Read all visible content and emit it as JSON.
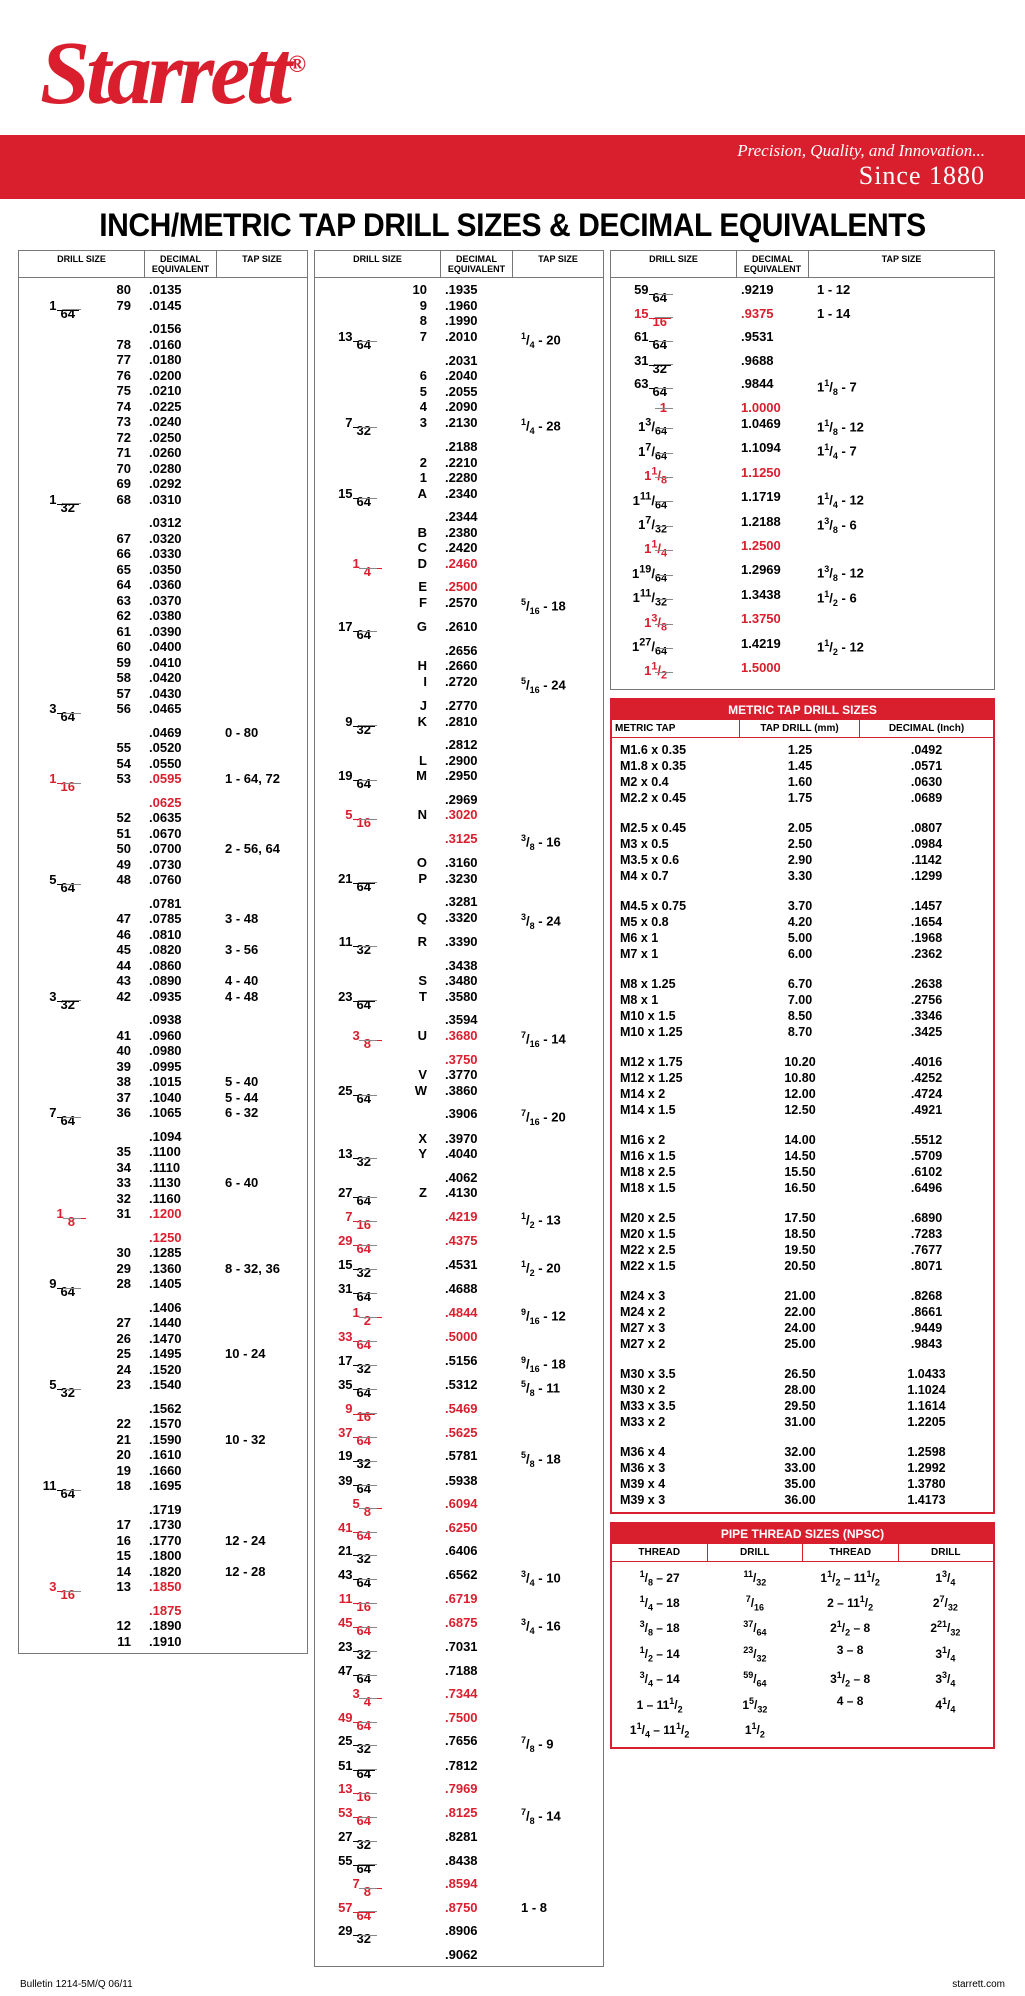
{
  "brand": "Starrett",
  "tagline": "Precision, Quality, and Innovation...",
  "since": "Since 1880",
  "title": "INCH/METRIC TAP DRILL SIZES & DECIMAL EQUIVALENTS",
  "headers": {
    "ds": "DRILL SIZE",
    "de": "DECIMAL EQUIVALENT",
    "ts": "TAP SIZE"
  },
  "footer_left": "Bulletin 1214-5M/Q  06/11",
  "footer_right": "starrett.com",
  "col1": [
    {
      "n": "80",
      "d": ".0135"
    },
    {
      "fN": "1",
      "fD": "64",
      "n": "79",
      "d": ".0145"
    },
    {
      "d": ".0156"
    },
    {
      "n": "78",
      "d": ".0160"
    },
    {
      "n": "77",
      "d": ".0180"
    },
    {
      "n": "76",
      "d": ".0200"
    },
    {
      "n": "75",
      "d": ".0210"
    },
    {
      "n": "74",
      "d": ".0225"
    },
    {
      "n": "73",
      "d": ".0240"
    },
    {
      "n": "72",
      "d": ".0250"
    },
    {
      "n": "71",
      "d": ".0260"
    },
    {
      "n": "70",
      "d": ".0280"
    },
    {
      "n": "69",
      "d": ".0292"
    },
    {
      "fN": "1",
      "fD": "32",
      "n": "68",
      "d": ".0310"
    },
    {
      "d": ".0312"
    },
    {
      "n": "67",
      "d": ".0320"
    },
    {
      "n": "66",
      "d": ".0330"
    },
    {
      "n": "65",
      "d": ".0350"
    },
    {
      "n": "64",
      "d": ".0360"
    },
    {
      "n": "63",
      "d": ".0370"
    },
    {
      "n": "62",
      "d": ".0380"
    },
    {
      "n": "61",
      "d": ".0390"
    },
    {
      "n": "60",
      "d": ".0400"
    },
    {
      "n": "59",
      "d": ".0410"
    },
    {
      "n": "58",
      "d": ".0420"
    },
    {
      "n": "57",
      "d": ".0430"
    },
    {
      "fN": "3",
      "fD": "64",
      "n": "56",
      "d": ".0465"
    },
    {
      "d": ".0469",
      "t": "0 - 80"
    },
    {
      "n": "55",
      "d": ".0520"
    },
    {
      "n": "54",
      "d": ".0550"
    },
    {
      "fN": "1",
      "fD": "16",
      "n": "53",
      "d": ".0595",
      "t": "1 - 64, 72",
      "red": true
    },
    {
      "d": ".0625",
      "red": true
    },
    {
      "n": "52",
      "d": ".0635"
    },
    {
      "n": "51",
      "d": ".0670"
    },
    {
      "n": "50",
      "d": ".0700",
      "t": "2 - 56, 64"
    },
    {
      "n": "49",
      "d": ".0730"
    },
    {
      "fN": "5",
      "fD": "64",
      "n": "48",
      "d": ".0760"
    },
    {
      "d": ".0781"
    },
    {
      "n": "47",
      "d": ".0785",
      "t": "3 - 48"
    },
    {
      "n": "46",
      "d": ".0810"
    },
    {
      "n": "45",
      "d": ".0820",
      "t": "3 - 56"
    },
    {
      "n": "44",
      "d": ".0860"
    },
    {
      "n": "43",
      "d": ".0890",
      "t": "4 - 40"
    },
    {
      "fN": "3",
      "fD": "32",
      "n": "42",
      "d": ".0935",
      "t": "4 - 48"
    },
    {
      "d": ".0938"
    },
    {
      "n": "41",
      "d": ".0960"
    },
    {
      "n": "40",
      "d": ".0980"
    },
    {
      "n": "39",
      "d": ".0995"
    },
    {
      "n": "38",
      "d": ".1015",
      "t": "5 - 40"
    },
    {
      "n": "37",
      "d": ".1040",
      "t": "5 - 44"
    },
    {
      "fN": "7",
      "fD": "64",
      "n": "36",
      "d": ".1065",
      "t": "6 - 32"
    },
    {
      "d": ".1094"
    },
    {
      "n": "35",
      "d": ".1100"
    },
    {
      "n": "34",
      "d": ".1110"
    },
    {
      "n": "33",
      "d": ".1130",
      "t": "6 - 40"
    },
    {
      "n": "32",
      "d": ".1160"
    },
    {
      "fN": "1",
      "fD": "8",
      "n": "31",
      "d": ".1200",
      "red": true
    },
    {
      "d": ".1250",
      "red": true
    },
    {
      "n": "30",
      "d": ".1285"
    },
    {
      "n": "29",
      "d": ".1360",
      "t": "8 - 32, 36"
    },
    {
      "fN": "9",
      "fD": "64",
      "n": "28",
      "d": ".1405"
    },
    {
      "d": ".1406"
    },
    {
      "n": "27",
      "d": ".1440"
    },
    {
      "n": "26",
      "d": ".1470"
    },
    {
      "n": "25",
      "d": ".1495",
      "t": "10 - 24"
    },
    {
      "n": "24",
      "d": ".1520"
    },
    {
      "fN": "5",
      "fD": "32",
      "n": "23",
      "d": ".1540"
    },
    {
      "d": ".1562"
    },
    {
      "n": "22",
      "d": ".1570"
    },
    {
      "n": "21",
      "d": ".1590",
      "t": "10 - 32"
    },
    {
      "n": "20",
      "d": ".1610"
    },
    {
      "n": "19",
      "d": ".1660"
    },
    {
      "fN": "11",
      "fD": "64",
      "n": "18",
      "d": ".1695"
    },
    {
      "d": ".1719"
    },
    {
      "n": "17",
      "d": ".1730"
    },
    {
      "n": "16",
      "d": ".1770",
      "t": "12 - 24"
    },
    {
      "n": "15",
      "d": ".1800"
    },
    {
      "n": "14",
      "d": ".1820",
      "t": "12 - 28"
    },
    {
      "fN": "3",
      "fD": "16",
      "n": "13",
      "d": ".1850",
      "red": true
    },
    {
      "d": ".1875",
      "red": true
    },
    {
      "n": "12",
      "d": ".1890"
    },
    {
      "n": "11",
      "d": ".1910"
    }
  ],
  "col2": [
    {
      "n": "10",
      "d": ".1935"
    },
    {
      "n": "9",
      "d": ".1960"
    },
    {
      "n": "8",
      "d": ".1990"
    },
    {
      "fN": "13",
      "fD": "64",
      "n": "7",
      "d": ".2010",
      "t": "1/4 - 20"
    },
    {
      "d": ".2031"
    },
    {
      "n": "6",
      "d": ".2040"
    },
    {
      "n": "5",
      "d": ".2055"
    },
    {
      "n": "4",
      "d": ".2090"
    },
    {
      "fN": "7",
      "fD": "32",
      "n": "3",
      "d": ".2130",
      "t": "1/4 - 28"
    },
    {
      "d": ".2188"
    },
    {
      "n": "2",
      "d": ".2210"
    },
    {
      "n": "1",
      "d": ".2280"
    },
    {
      "fN": "15",
      "fD": "64",
      "n": "A",
      "d": ".2340"
    },
    {
      "d": ".2344"
    },
    {
      "n": "B",
      "d": ".2380"
    },
    {
      "n": "C",
      "d": ".2420"
    },
    {
      "fN": "1",
      "fD": "4",
      "n": "D",
      "d": ".2460",
      "red": true
    },
    {
      "n": "E",
      "d": ".2500",
      "red": true
    },
    {
      "n": "F",
      "d": ".2570",
      "t": "5/16 - 18"
    },
    {
      "fN": "17",
      "fD": "64",
      "n": "G",
      "d": ".2610"
    },
    {
      "d": ".2656"
    },
    {
      "n": "H",
      "d": ".2660"
    },
    {
      "n": "I",
      "d": ".2720",
      "t": "5/16 - 24"
    },
    {
      "n": "J",
      "d": ".2770"
    },
    {
      "fN": "9",
      "fD": "32",
      "n": "K",
      "d": ".2810"
    },
    {
      "d": ".2812"
    },
    {
      "n": "L",
      "d": ".2900"
    },
    {
      "fN": "19",
      "fD": "64",
      "n": "M",
      "d": ".2950"
    },
    {
      "d": ".2969"
    },
    {
      "fN": "5",
      "fD": "16",
      "n": "N",
      "d": ".3020",
      "red": true
    },
    {
      "d": ".3125",
      "t": "3/8 - 16",
      "red": true
    },
    {
      "n": "O",
      "d": ".3160"
    },
    {
      "fN": "21",
      "fD": "64",
      "n": "P",
      "d": ".3230"
    },
    {
      "d": ".3281"
    },
    {
      "n": "Q",
      "d": ".3320",
      "t": "3/8 - 24"
    },
    {
      "fN": "11",
      "fD": "32",
      "n": "R",
      "d": ".3390"
    },
    {
      "d": ".3438"
    },
    {
      "n": "S",
      "d": ".3480"
    },
    {
      "fN": "23",
      "fD": "64",
      "n": "T",
      "d": ".3580"
    },
    {
      "d": ".3594"
    },
    {
      "fN": "3",
      "fD": "8",
      "n": "U",
      "d": ".3680",
      "t": "7/16 - 14",
      "red": true
    },
    {
      "d": ".3750",
      "red": true
    },
    {
      "n": "V",
      "d": ".3770"
    },
    {
      "fN": "25",
      "fD": "64",
      "n": "W",
      "d": ".3860"
    },
    {
      "d": ".3906",
      "t": "7/16 - 20"
    },
    {
      "n": "X",
      "d": ".3970"
    },
    {
      "fN": "13",
      "fD": "32",
      "n": "Y",
      "d": ".4040"
    },
    {
      "d": ".4062"
    },
    {
      "fN": "27",
      "fD": "64",
      "n": "Z",
      "d": ".4130"
    },
    {
      "fN": "7",
      "fD": "16",
      "d": ".4219",
      "t": "1/2 - 13",
      "red": true
    },
    {
      "fN": "29",
      "fD": "64",
      "d": ".4375",
      "red": true
    },
    {
      "fN": "15",
      "fD": "32",
      "d": ".4531",
      "t": "1/2 - 20"
    },
    {
      "fN": "31",
      "fD": "64",
      "d": ".4688"
    },
    {
      "fN": "1",
      "fD": "2",
      "d": ".4844",
      "t": "9/16 - 12",
      "red": true
    },
    {
      "fN": "33",
      "fD": "64",
      "d": ".5000",
      "red": true
    },
    {
      "fN": "17",
      "fD": "32",
      "d": ".5156",
      "t": "9/16 - 18"
    },
    {
      "fN": "35",
      "fD": "64",
      "d": ".5312",
      "t": "5/8 - 11"
    },
    {
      "fN": "9",
      "fD": "16",
      "d": ".5469",
      "red": true
    },
    {
      "fN": "37",
      "fD": "64",
      "d": ".5625",
      "red": true
    },
    {
      "fN": "19",
      "fD": "32",
      "d": ".5781",
      "t": "5/8 - 18"
    },
    {
      "fN": "39",
      "fD": "64",
      "d": ".5938"
    },
    {
      "fN": "5",
      "fD": "8",
      "d": ".6094",
      "red": true
    },
    {
      "fN": "41",
      "fD": "64",
      "d": ".6250",
      "red": true
    },
    {
      "fN": "21",
      "fD": "32",
      "d": ".6406"
    },
    {
      "fN": "43",
      "fD": "64",
      "d": ".6562",
      "t": "3/4 - 10"
    },
    {
      "fN": "11",
      "fD": "16",
      "d": ".6719",
      "red": true
    },
    {
      "fN": "45",
      "fD": "64",
      "d": ".6875",
      "t": "3/4 - 16",
      "red": true
    },
    {
      "fN": "23",
      "fD": "32",
      "d": ".7031"
    },
    {
      "fN": "47",
      "fD": "64",
      "d": ".7188"
    },
    {
      "fN": "3",
      "fD": "4",
      "d": ".7344",
      "red": true
    },
    {
      "fN": "49",
      "fD": "64",
      "d": ".7500",
      "red": true
    },
    {
      "fN": "25",
      "fD": "32",
      "d": ".7656",
      "t": "7/8 - 9"
    },
    {
      "fN": "51",
      "fD": "64",
      "d": ".7812"
    },
    {
      "fN": "13",
      "fD": "16",
      "d": ".7969",
      "red": true
    },
    {
      "fN": "53",
      "fD": "64",
      "d": ".8125",
      "t": "7/8 - 14",
      "red": true
    },
    {
      "fN": "27",
      "fD": "32",
      "d": ".8281"
    },
    {
      "fN": "55",
      "fD": "64",
      "d": ".8438"
    },
    {
      "fN": "7",
      "fD": "8",
      "d": ".8594",
      "red": true
    },
    {
      "fN": "57",
      "fD": "64",
      "d": ".8750",
      "t": "1 - 8",
      "red": true
    },
    {
      "fN": "29",
      "fD": "32",
      "d": ".8906"
    },
    {
      "d": ".9062"
    }
  ],
  "col3top": [
    {
      "fN": "59",
      "fD": "64",
      "d": ".9219",
      "t": "1 - 12"
    },
    {
      "fN": "15",
      "fD": "16",
      "d": ".9375",
      "t": "1 - 14",
      "red": true
    },
    {
      "fN": "61",
      "fD": "64",
      "d": ".9531"
    },
    {
      "fN": "31",
      "fD": "32",
      "d": ".9688"
    },
    {
      "fN": "63",
      "fD": "64",
      "d": ".9844",
      "t": "1 1/8 - 7"
    },
    {
      "fN": "1",
      "fD": "",
      "d": "1.0000",
      "red": true
    },
    {
      "fN": "1 3/64",
      "d": "1.0469",
      "t": "1 1/8 - 12"
    },
    {
      "fN": "1 7/64",
      "d": "1.1094",
      "t": "1 1/4 - 7"
    },
    {
      "fN": "1 1/8",
      "d": "1.1250",
      "red": true
    },
    {
      "fN": "1 11/64",
      "d": "1.1719",
      "t": "1 1/4 - 12"
    },
    {
      "fN": "1 7/32",
      "d": "1.2188",
      "t": "1 3/8 - 6"
    },
    {
      "fN": "1 1/4",
      "d": "1.2500",
      "red": true
    },
    {
      "fN": "1 19/64",
      "d": "1.2969",
      "t": "1 3/8 - 12"
    },
    {
      "fN": "1 11/32",
      "d": "1.3438",
      "t": "1 1/2 - 6"
    },
    {
      "fN": "1 3/8",
      "d": "1.3750",
      "red": true
    },
    {
      "fN": "1 27/64",
      "d": "1.4219",
      "t": "1 1/2 - 12"
    },
    {
      "fN": "1 1/2",
      "d": "1.5000",
      "red": true
    }
  ],
  "metric_title": "METRIC TAP DRILL SIZES",
  "metric_headers": {
    "a": "METRIC TAP",
    "b": "TAP DRILL (mm)",
    "c": "DECIMAL (Inch)"
  },
  "metric_groups": [
    [
      [
        "M1.6 x 0.35",
        "1.25",
        ".0492"
      ],
      [
        "M1.8 x 0.35",
        "1.45",
        ".0571"
      ],
      [
        "M2 x 0.4",
        "1.60",
        ".0630"
      ],
      [
        "M2.2 x 0.45",
        "1.75",
        ".0689"
      ]
    ],
    [
      [
        "M2.5 x 0.45",
        "2.05",
        ".0807"
      ],
      [
        "M3 x 0.5",
        "2.50",
        ".0984"
      ],
      [
        "M3.5 x 0.6",
        "2.90",
        ".1142"
      ],
      [
        "M4 x 0.7",
        "3.30",
        ".1299"
      ]
    ],
    [
      [
        "M4.5 x 0.75",
        "3.70",
        ".1457"
      ],
      [
        "M5 x 0.8",
        "4.20",
        ".1654"
      ],
      [
        "M6 x 1",
        "5.00",
        ".1968"
      ],
      [
        "M7 x 1",
        "6.00",
        ".2362"
      ]
    ],
    [
      [
        "M8 x 1.25",
        "6.70",
        ".2638"
      ],
      [
        "M8 x 1",
        "7.00",
        ".2756"
      ],
      [
        "M10 x 1.5",
        "8.50",
        ".3346"
      ],
      [
        "M10 x 1.25",
        "8.70",
        ".3425"
      ]
    ],
    [
      [
        "M12 x 1.75",
        "10.20",
        ".4016"
      ],
      [
        "M12 x 1.25",
        "10.80",
        ".4252"
      ],
      [
        "M14 x 2",
        "12.00",
        ".4724"
      ],
      [
        "M14 x 1.5",
        "12.50",
        ".4921"
      ]
    ],
    [
      [
        "M16 x 2",
        "14.00",
        ".5512"
      ],
      [
        "M16 x 1.5",
        "14.50",
        ".5709"
      ],
      [
        "M18 x 2.5",
        "15.50",
        ".6102"
      ],
      [
        "M18 x 1.5",
        "16.50",
        ".6496"
      ]
    ],
    [
      [
        "M20 x 2.5",
        "17.50",
        ".6890"
      ],
      [
        "M20 x 1.5",
        "18.50",
        ".7283"
      ],
      [
        "M22 x 2.5",
        "19.50",
        ".7677"
      ],
      [
        "M22 x 1.5",
        "20.50",
        ".8071"
      ]
    ],
    [
      [
        "M24 x 3",
        "21.00",
        ".8268"
      ],
      [
        "M24 x 2",
        "22.00",
        ".8661"
      ],
      [
        "M27 x 3",
        "24.00",
        ".9449"
      ],
      [
        "M27 x 2",
        "25.00",
        ".9843"
      ]
    ],
    [
      [
        "M30 x 3.5",
        "26.50",
        "1.0433"
      ],
      [
        "M30 x 2",
        "28.00",
        "1.1024"
      ],
      [
        "M33 x 3.5",
        "29.50",
        "1.1614"
      ],
      [
        "M33 x 2",
        "31.00",
        "1.2205"
      ]
    ],
    [
      [
        "M36 x 4",
        "32.00",
        "1.2598"
      ],
      [
        "M36 x 3",
        "33.00",
        "1.2992"
      ],
      [
        "M39 x 4",
        "35.00",
        "1.3780"
      ],
      [
        "M39 x 3",
        "36.00",
        "1.4173"
      ]
    ]
  ],
  "pipe_title": "PIPE THREAD SIZES (NPSC)",
  "pipe_headers": [
    "THREAD",
    "DRILL",
    "THREAD",
    "DRILL"
  ],
  "pipe_rows": [
    [
      "1/8 – 27",
      "11/32",
      "1 1/2 – 11 1/2",
      "1 3/4"
    ],
    [
      "1/4 – 18",
      "7/16",
      "2 – 11 1/2",
      "2 7/32"
    ],
    [
      "3/8 – 18",
      "37/64",
      "2 1/2 – 8",
      "2 21/32"
    ],
    [
      "1/2 – 14",
      "23/32",
      "3 – 8",
      "3 1/4"
    ],
    [
      "3/4 – 14",
      "59/64",
      "3 1/2 – 8",
      "3 3/4"
    ],
    [
      "1 – 11 1/2",
      "1 5/32",
      "4 – 8",
      "4 1/4"
    ],
    [
      "1 1/4 – 11 1/2",
      "1 1/2",
      "",
      ""
    ]
  ]
}
